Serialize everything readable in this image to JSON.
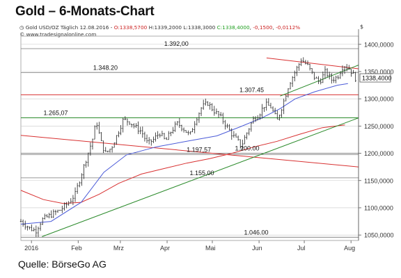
{
  "title": "Gold – 6-Monats-Chart",
  "info_line": {
    "instrument": "Gold USD/OZ Täglich",
    "date": "12.08.2016",
    "open": "O:1338,5700",
    "high": "H:1339,2000",
    "low": "L:1338,3000",
    "close": "C:1338,4000",
    "change": "-0,1500",
    "change_pct": "-0,0112%",
    "url": "© www.tradesignalonline.com"
  },
  "currency_symbol": "$",
  "source": "Quelle: BörseGo AG",
  "colors": {
    "candle": "#222222",
    "ma_blue": "#4a5ad8",
    "ma_red": "#d83030",
    "support_green": "#2a8a2a",
    "grid": "#c8c8c8",
    "hline": "#777777",
    "axis_text": "#333333"
  },
  "chart_data": {
    "type": "candlestick",
    "title": "Gold – 6-Monats-Chart",
    "ylim": [
      1040,
      1415
    ],
    "grid": true,
    "x_tick_labels": [
      "2016",
      "Feb",
      "Mrz",
      "Apr",
      "Mai",
      "Jun",
      "Jul",
      "Aug"
    ],
    "x_tick_days": [
      7,
      38,
      66,
      97,
      127,
      158,
      188,
      219
    ],
    "x_range_days": [
      0,
      224
    ],
    "y_ticks": [
      "1400,0000",
      "1350,0000",
      "1300,0000",
      "1250,0000",
      "1200,0000",
      "1150,0000",
      "1100,0000",
      "1050,0000"
    ],
    "y_tick_values": [
      1400,
      1350,
      1300,
      1250,
      1200,
      1150,
      1100,
      1050
    ],
    "last_price_label": "1338,4000",
    "last_price": 1338.4,
    "horizontal_levels": [
      {
        "label": "1.392,00",
        "value": 1392,
        "color": "#777777",
        "label_day": 95
      },
      {
        "label": "1.348.20",
        "value": 1348.2,
        "color": "#777777",
        "label_day": 48
      },
      {
        "label": "1.307.45",
        "value": 1307.45,
        "color": "#d83030",
        "label_day": 145
      },
      {
        "label": "1.265,07",
        "value": 1265.07,
        "color": "#2a8a2a",
        "label_day": 15
      },
      {
        "label": "1.200.00",
        "value": 1200,
        "color": "#777777",
        "label_day": 142
      },
      {
        "label": "1.197,57",
        "value": 1197.57,
        "color": "#777777",
        "label_day": 110
      },
      {
        "label": "1.155,00",
        "value": 1155,
        "color": "#777777",
        "label_day": 112
      },
      {
        "label": "1.046.00",
        "value": 1046,
        "color": "#777777",
        "label_day": 148
      }
    ],
    "trend_lines": [
      {
        "name": "support",
        "color": "#2a8a2a",
        "points": [
          [
            14,
            1047
          ],
          [
            224,
            1265
          ]
        ]
      },
      {
        "name": "upper",
        "color": "#d83030",
        "points": [
          [
            163,
            1375
          ],
          [
            224,
            1355
          ]
        ]
      },
      {
        "name": "lower",
        "color": "#2a8a2a",
        "points": [
          [
            172,
            1305
          ],
          [
            224,
            1362
          ]
        ]
      }
    ],
    "ma_blue": [
      [
        0,
        1070
      ],
      [
        20,
        1075
      ],
      [
        40,
        1110
      ],
      [
        55,
        1165
      ],
      [
        70,
        1197
      ],
      [
        90,
        1212
      ],
      [
        110,
        1222
      ],
      [
        130,
        1232
      ],
      [
        145,
        1248
      ],
      [
        160,
        1265
      ],
      [
        172,
        1282
      ],
      [
        182,
        1300
      ],
      [
        195,
        1313
      ],
      [
        210,
        1325
      ],
      [
        217,
        1328
      ]
    ],
    "ma_red": [
      [
        0,
        1132
      ],
      [
        15,
        1115
      ],
      [
        28,
        1108
      ],
      [
        40,
        1110
      ],
      [
        52,
        1125
      ],
      [
        65,
        1145
      ],
      [
        80,
        1162
      ],
      [
        95,
        1172
      ],
      [
        110,
        1182
      ],
      [
        125,
        1190
      ],
      [
        140,
        1200
      ],
      [
        155,
        1212
      ],
      [
        170,
        1222
      ],
      [
        185,
        1235
      ],
      [
        200,
        1247
      ],
      [
        215,
        1252
      ]
    ],
    "downtrend_red": [
      [
        0,
        1233
      ],
      [
        224,
        1175
      ]
    ],
    "close_path": [
      [
        0,
        1075
      ],
      [
        6,
        1062
      ],
      [
        10,
        1058
      ],
      [
        14,
        1078
      ],
      [
        20,
        1087
      ],
      [
        26,
        1096
      ],
      [
        32,
        1110
      ],
      [
        36,
        1125
      ],
      [
        40,
        1160
      ],
      [
        44,
        1195
      ],
      [
        48,
        1230
      ],
      [
        50,
        1260
      ],
      [
        53,
        1222
      ],
      [
        56,
        1200
      ],
      [
        60,
        1210
      ],
      [
        64,
        1235
      ],
      [
        68,
        1262
      ],
      [
        72,
        1258
      ],
      [
        76,
        1248
      ],
      [
        80,
        1240
      ],
      [
        84,
        1218
      ],
      [
        88,
        1225
      ],
      [
        92,
        1238
      ],
      [
        96,
        1222
      ],
      [
        100,
        1242
      ],
      [
        104,
        1255
      ],
      [
        108,
        1245
      ],
      [
        112,
        1232
      ],
      [
        116,
        1262
      ],
      [
        120,
        1285
      ],
      [
        124,
        1292
      ],
      [
        128,
        1278
      ],
      [
        132,
        1268
      ],
      [
        136,
        1252
      ],
      [
        140,
        1235
      ],
      [
        144,
        1222
      ],
      [
        146,
        1212
      ],
      [
        150,
        1238
      ],
      [
        154,
        1262
      ],
      [
        158,
        1272
      ],
      [
        162,
        1290
      ],
      [
        166,
        1285
      ],
      [
        170,
        1260
      ],
      [
        174,
        1292
      ],
      [
        178,
        1328
      ],
      [
        182,
        1350
      ],
      [
        186,
        1372
      ],
      [
        190,
        1362
      ],
      [
        194,
        1342
      ],
      [
        198,
        1330
      ],
      [
        202,
        1350
      ],
      [
        206,
        1335
      ],
      [
        210,
        1340
      ],
      [
        214,
        1362
      ],
      [
        218,
        1355
      ],
      [
        222,
        1338
      ]
    ],
    "candle_count": 155
  }
}
